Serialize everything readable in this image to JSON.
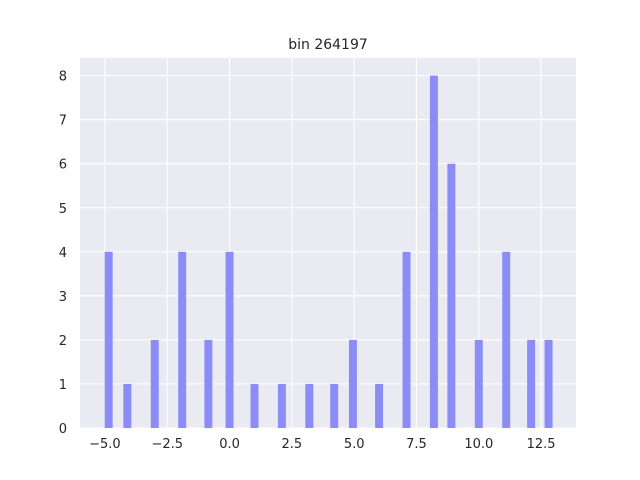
{
  "chart_data": {
    "type": "bar",
    "title": "bin 264197",
    "xlabel": "",
    "ylabel": "",
    "xlim": [
      -6.0,
      13.9
    ],
    "ylim": [
      0,
      8.4
    ],
    "x_ticks": [
      -5.0,
      -2.5,
      0.0,
      2.5,
      5.0,
      7.5,
      10.0,
      12.5
    ],
    "x_tick_labels": [
      "−5.0",
      "−2.5",
      "0.0",
      "2.5",
      "5.0",
      "7.5",
      "10.0",
      "12.5"
    ],
    "y_ticks": [
      0,
      1,
      2,
      3,
      4,
      5,
      6,
      7,
      8
    ],
    "y_tick_labels": [
      "0",
      "1",
      "2",
      "3",
      "4",
      "5",
      "6",
      "7",
      "8"
    ],
    "grid": true,
    "bar_color": "#8c8cf7",
    "background_color": "#eaeaf2",
    "bar_width": 0.32,
    "x": [
      -4.85,
      -4.1,
      -3.0,
      -1.9,
      -0.85,
      0.0,
      1.0,
      2.1,
      3.2,
      4.2,
      4.95,
      6.0,
      7.1,
      8.2,
      8.9,
      10.0,
      11.1,
      12.1,
      12.8
    ],
    "values": [
      4,
      1,
      2,
      4,
      2,
      4,
      1,
      1,
      1,
      1,
      2,
      1,
      4,
      8,
      6,
      2,
      4,
      2,
      2
    ]
  }
}
